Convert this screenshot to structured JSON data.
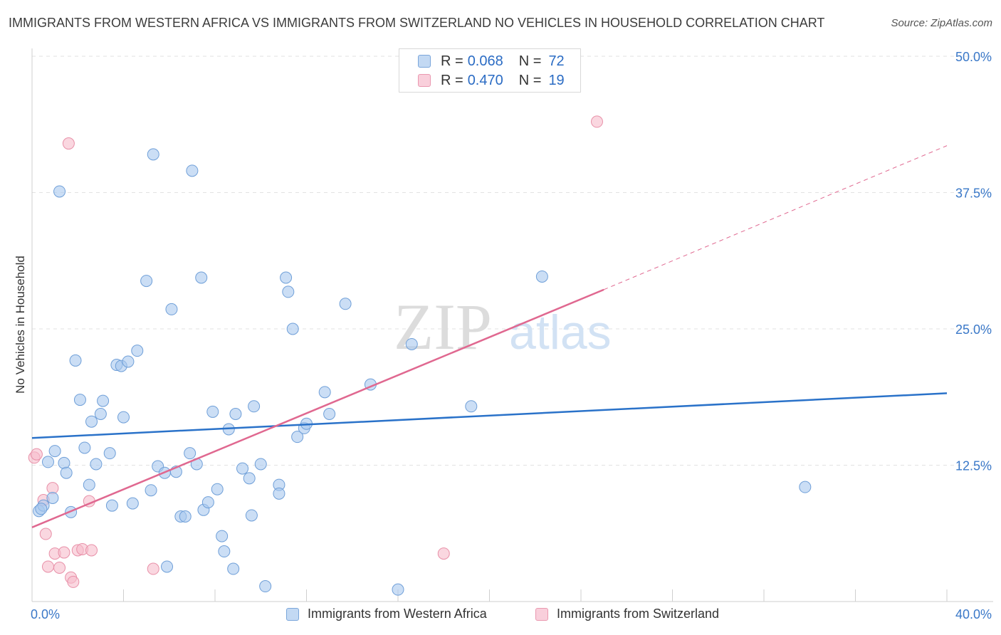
{
  "title": "IMMIGRANTS FROM WESTERN AFRICA VS IMMIGRANTS FROM SWITZERLAND NO VEHICLES IN HOUSEHOLD CORRELATION CHART",
  "source": "Source: ZipAtlas.com",
  "watermark": {
    "zip": "ZIP",
    "atlas": "atlas"
  },
  "colors": {
    "blue": "#a9c8ef",
    "blue_stroke": "#6f9fd8",
    "blue_line": "#2a72c9",
    "pink": "#f6bccb",
    "pink_stroke": "#e890a8",
    "pink_line": "#e06890",
    "tick_label": "#3a78c8",
    "grid": "#e2e2e2"
  },
  "legend_top": [
    {
      "r_label": "R =",
      "r_value": "0.068",
      "n_label": "N =",
      "n_value": "72"
    },
    {
      "r_label": "R =",
      "r_value": "0.470",
      "n_label": "N =",
      "n_value": "19"
    }
  ],
  "legend_bottom": [
    "Immigrants from Western Africa",
    "Immigrants from Switzerland"
  ],
  "chart_data": {
    "type": "scatter",
    "title": "IMMIGRANTS FROM WESTERN AFRICA VS IMMIGRANTS FROM SWITZERLAND NO VEHICLES IN HOUSEHOLD CORRELATION CHART",
    "xlabel": "",
    "ylabel": "No Vehicles in Household",
    "xlim": [
      0,
      40
    ],
    "ylim": [
      0,
      50
    ],
    "x_tick_labels": [
      "0.0%",
      "40.0%"
    ],
    "y_ticks": [
      12.5,
      25.0,
      37.5,
      50.0
    ],
    "y_tick_labels": [
      "12.5%",
      "25.0%",
      "37.5%",
      "50.0%"
    ],
    "grid": true,
    "legend": "top-center",
    "series": [
      {
        "name": "Immigrants from Western Africa",
        "color": "#a9c8ef",
        "trend": {
          "x": [
            0,
            40
          ],
          "y": [
            15.0,
            19.1
          ]
        },
        "points": [
          [
            0.3,
            8.3
          ],
          [
            0.5,
            8.8
          ],
          [
            0.4,
            8.5
          ],
          [
            0.9,
            9.5
          ],
          [
            0.7,
            12.8
          ],
          [
            1.0,
            13.8
          ],
          [
            1.2,
            37.6
          ],
          [
            1.4,
            12.7
          ],
          [
            1.5,
            11.8
          ],
          [
            1.7,
            8.2
          ],
          [
            1.9,
            22.1
          ],
          [
            2.1,
            18.5
          ],
          [
            2.3,
            14.1
          ],
          [
            2.5,
            10.7
          ],
          [
            2.6,
            16.5
          ],
          [
            2.8,
            12.6
          ],
          [
            3.0,
            17.2
          ],
          [
            3.1,
            18.4
          ],
          [
            3.4,
            13.6
          ],
          [
            3.5,
            8.8
          ],
          [
            3.7,
            21.7
          ],
          [
            3.9,
            21.6
          ],
          [
            4.0,
            16.9
          ],
          [
            4.2,
            22.0
          ],
          [
            4.4,
            9.0
          ],
          [
            4.6,
            23.0
          ],
          [
            5.0,
            29.4
          ],
          [
            5.2,
            10.2
          ],
          [
            5.3,
            41.0
          ],
          [
            5.5,
            12.4
          ],
          [
            5.8,
            11.8
          ],
          [
            5.9,
            3.2
          ],
          [
            6.1,
            26.8
          ],
          [
            6.3,
            11.9
          ],
          [
            6.5,
            7.8
          ],
          [
            6.7,
            7.8
          ],
          [
            6.9,
            13.6
          ],
          [
            7.0,
            39.5
          ],
          [
            7.2,
            12.6
          ],
          [
            7.4,
            29.7
          ],
          [
            7.5,
            8.4
          ],
          [
            7.7,
            9.1
          ],
          [
            7.9,
            17.4
          ],
          [
            8.1,
            10.3
          ],
          [
            8.3,
            6.0
          ],
          [
            8.4,
            4.6
          ],
          [
            8.6,
            15.8
          ],
          [
            8.8,
            3.0
          ],
          [
            8.9,
            17.2
          ],
          [
            9.2,
            12.2
          ],
          [
            9.5,
            11.3
          ],
          [
            9.6,
            7.9
          ],
          [
            9.7,
            17.9
          ],
          [
            10.0,
            12.6
          ],
          [
            10.2,
            1.4
          ],
          [
            10.8,
            10.7
          ],
          [
            10.8,
            9.9
          ],
          [
            11.1,
            29.7
          ],
          [
            11.2,
            28.4
          ],
          [
            11.4,
            25.0
          ],
          [
            11.6,
            15.1
          ],
          [
            11.9,
            15.9
          ],
          [
            12.0,
            16.3
          ],
          [
            12.8,
            19.2
          ],
          [
            13.0,
            17.2
          ],
          [
            13.7,
            27.3
          ],
          [
            14.8,
            19.9
          ],
          [
            16.0,
            1.1
          ],
          [
            16.6,
            23.6
          ],
          [
            19.2,
            17.9
          ],
          [
            22.3,
            29.8
          ],
          [
            33.8,
            10.5
          ]
        ]
      },
      {
        "name": "Immigrants from Switzerland",
        "color": "#f6bccb",
        "trend": {
          "x": [
            0,
            25
          ],
          "y": [
            6.8,
            28.6
          ]
        },
        "trend_dashed": {
          "x": [
            25,
            40
          ],
          "y": [
            28.6,
            41.8
          ]
        },
        "points": [
          [
            0.1,
            13.2
          ],
          [
            0.2,
            13.5
          ],
          [
            0.5,
            9.3
          ],
          [
            0.6,
            6.2
          ],
          [
            0.7,
            3.2
          ],
          [
            0.9,
            10.4
          ],
          [
            1.0,
            4.4
          ],
          [
            1.2,
            3.1
          ],
          [
            1.4,
            4.5
          ],
          [
            1.6,
            42.0
          ],
          [
            1.7,
            2.2
          ],
          [
            1.8,
            1.8
          ],
          [
            2.0,
            4.7
          ],
          [
            2.2,
            4.8
          ],
          [
            2.5,
            9.2
          ],
          [
            2.6,
            4.7
          ],
          [
            5.3,
            3.0
          ],
          [
            18.0,
            4.4
          ],
          [
            24.7,
            44.0
          ]
        ]
      }
    ]
  }
}
